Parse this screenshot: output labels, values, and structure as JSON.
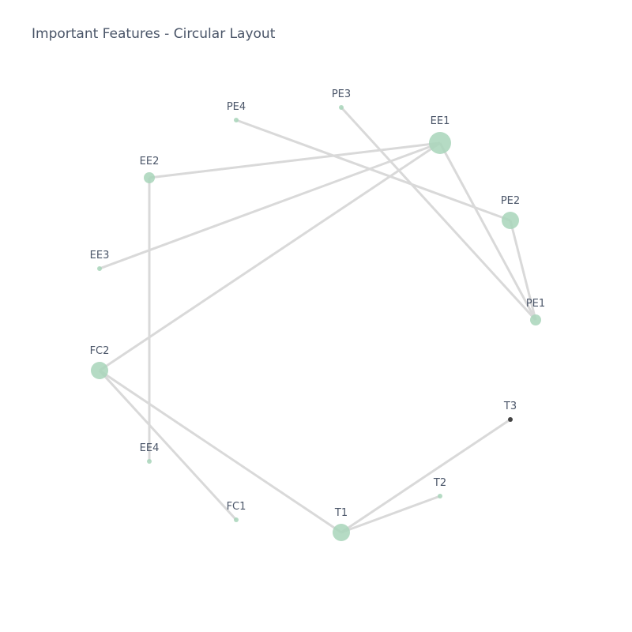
{
  "title": "Important Features - Circular Layout",
  "colors": {
    "node": "#a8d5ba",
    "node_dark": "#444444",
    "edge": "#d9d9d9"
  },
  "nodes": [
    {
      "id": "EE1",
      "label": "EE1",
      "size": "large"
    },
    {
      "id": "PE2",
      "label": "PE2",
      "size": "medium"
    },
    {
      "id": "PE1",
      "label": "PE1",
      "size": "small-medium"
    },
    {
      "id": "T3",
      "label": "T3",
      "size": "tiny",
      "color": "dark"
    },
    {
      "id": "T2",
      "label": "T2",
      "size": "tiny"
    },
    {
      "id": "T1",
      "label": "T1",
      "size": "medium"
    },
    {
      "id": "FC1",
      "label": "FC1",
      "size": "tiny"
    },
    {
      "id": "EE4",
      "label": "EE4",
      "size": "tiny"
    },
    {
      "id": "FC2",
      "label": "FC2",
      "size": "medium"
    },
    {
      "id": "EE3",
      "label": "EE3",
      "size": "tiny"
    },
    {
      "id": "EE2",
      "label": "EE2",
      "size": "small-medium"
    },
    {
      "id": "PE4",
      "label": "PE4",
      "size": "tiny"
    },
    {
      "id": "PE3",
      "label": "PE3",
      "size": "tiny"
    }
  ],
  "edges": [
    [
      "EE1",
      "EE2"
    ],
    [
      "EE1",
      "EE3"
    ],
    [
      "EE1",
      "FC2"
    ],
    [
      "EE1",
      "PE1"
    ],
    [
      "PE4",
      "PE2"
    ],
    [
      "PE3",
      "PE1"
    ],
    [
      "PE2",
      "PE1"
    ],
    [
      "EE2",
      "EE4"
    ],
    [
      "FC2",
      "FC1"
    ],
    [
      "FC2",
      "T1"
    ],
    [
      "T1",
      "T3"
    ],
    [
      "T1",
      "T2"
    ]
  ]
}
